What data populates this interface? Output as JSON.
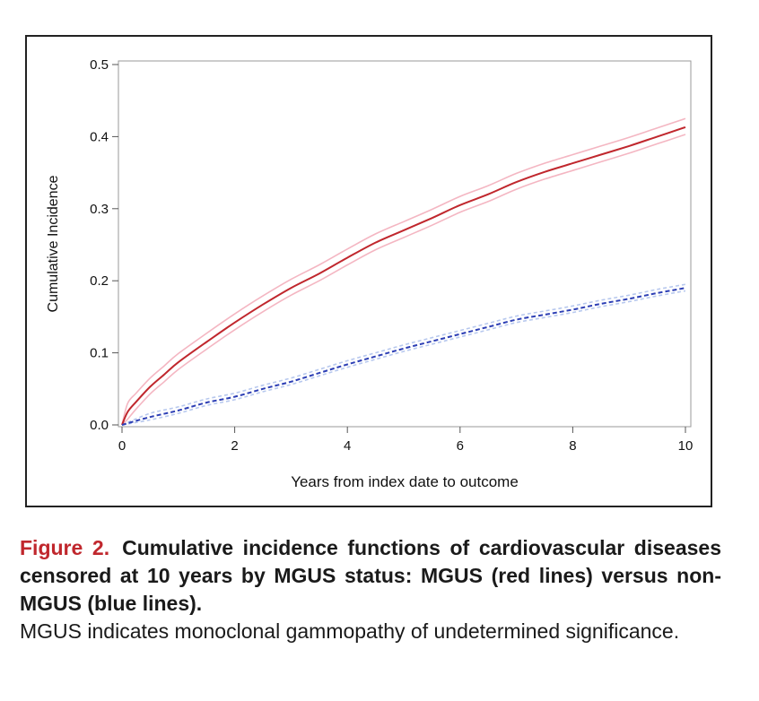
{
  "chart_data": {
    "type": "line",
    "title": "",
    "xlabel": "Years from index date to outcome",
    "ylabel": "Cumulative Incidence",
    "xlim": [
      0,
      10
    ],
    "ylim": [
      0,
      0.5
    ],
    "xticks": [
      0,
      2,
      4,
      6,
      8,
      10
    ],
    "yticks": [
      0.0,
      0.1,
      0.2,
      0.3,
      0.4,
      0.5
    ],
    "xtick_labels": [
      "0",
      "2",
      "4",
      "6",
      "8",
      "10"
    ],
    "ytick_labels": [
      "0.0",
      "0.1",
      "0.2",
      "0.3",
      "0.4",
      "0.5"
    ],
    "grid": false,
    "series": [
      {
        "name": "MGUS",
        "color": "#c0272d",
        "band_color": "#f4b6c2",
        "x": [
          0,
          0.1,
          0.25,
          0.5,
          0.75,
          1,
          1.5,
          2,
          2.5,
          3,
          3.5,
          4,
          4.5,
          5,
          5.5,
          6,
          6.5,
          7,
          7.5,
          8,
          8.5,
          9,
          9.5,
          10
        ],
        "y": [
          0,
          0.018,
          0.032,
          0.053,
          0.07,
          0.087,
          0.115,
          0.142,
          0.167,
          0.19,
          0.21,
          0.232,
          0.253,
          0.27,
          0.287,
          0.305,
          0.32,
          0.337,
          0.351,
          0.363,
          0.375,
          0.387,
          0.4,
          0.413
        ],
        "lower_offset": 0.01,
        "upper_offset": 0.012
      },
      {
        "name": "non-MGUS",
        "color": "#2d3fb5",
        "band_color": "#b7c8ee",
        "x": [
          0,
          0.5,
          1,
          1.5,
          2,
          2.5,
          3,
          3.5,
          4,
          4.5,
          5,
          5.5,
          6,
          6.5,
          7,
          7.5,
          8,
          8.5,
          9,
          9.5,
          10
        ],
        "y": [
          0,
          0.011,
          0.02,
          0.031,
          0.039,
          0.05,
          0.06,
          0.072,
          0.084,
          0.095,
          0.106,
          0.116,
          0.126,
          0.136,
          0.146,
          0.153,
          0.16,
          0.168,
          0.175,
          0.183,
          0.19
        ],
        "lower_offset": 0.004,
        "upper_offset": 0.005
      }
    ]
  },
  "caption": {
    "label": "Figure 2.",
    "title": "Cumulative incidence functions of cardiovascular diseases censored at 10 years by MGUS status: MGUS (red lines) versus non-MGUS (blue lines).",
    "note": "MGUS indicates monoclonal gammopathy of undetermined significance."
  }
}
